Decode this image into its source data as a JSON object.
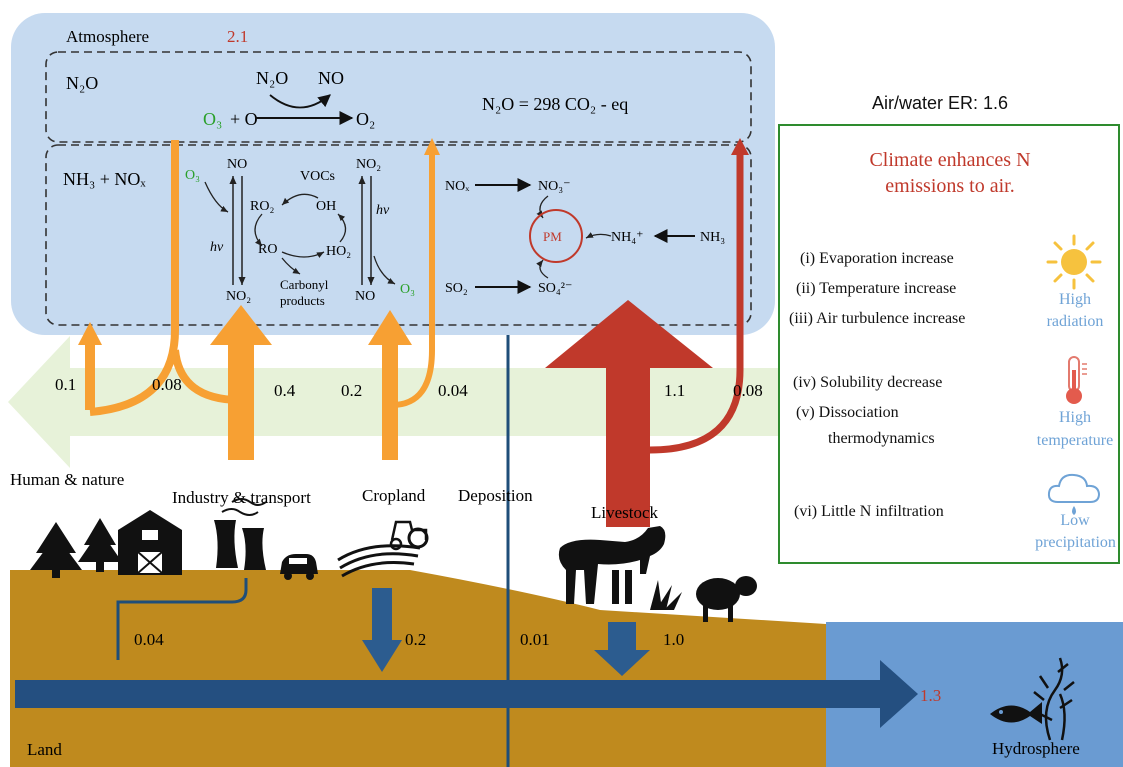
{
  "atmosphere": {
    "label": "Atmosphere",
    "value": "2.1",
    "n2o_label": "N₂O",
    "reaction_o3": "O₃",
    "reaction_plus_o": "+ O",
    "reaction_n2o": "N₂O",
    "reaction_no": "NO",
    "reaction_o2": "O₂",
    "gwp": "N₂O = 298 CO₂ - eq",
    "nh3_nox": "NH₃ + NOₓ",
    "cycle": {
      "o3_left": "O₃",
      "no_top": "NO",
      "ro2": "RO₂",
      "vocs": "VOCs",
      "oh": "OH",
      "no2_top": "NO₂",
      "hv_left": "hv",
      "hv_right": "hv",
      "ro": "RO",
      "ho2": "HO₂",
      "no2_bottom": "NO₂",
      "carbonyl_1": "Carbonyl",
      "carbonyl_2": "products",
      "no_bottom": "NO",
      "o3_right": "O₃"
    },
    "pm": {
      "nox": "NOₓ",
      "no3": "NO₃⁻",
      "pm": "PM",
      "nh4": "NH₄⁺",
      "nh3": "NH₃",
      "so2": "SO₂",
      "so4": "SO₄²⁻"
    }
  },
  "flows": {
    "v0_1": "0.1",
    "v0_08_left": "0.08",
    "v0_4": "0.4",
    "v0_2": "0.2",
    "v0_04_top": "0.04",
    "v1_1": "1.1",
    "v0_08_right": "0.08",
    "v0_04_land": "0.04",
    "v0_2_land": "0.2",
    "v0_01": "0.01",
    "v1_0": "1.0",
    "v1_3": "1.3"
  },
  "sources": {
    "human_nature": "Human & nature",
    "industry": "Industry & transport",
    "cropland": "Cropland",
    "deposition": "Deposition",
    "livestock": "Livestock"
  },
  "land": "Land",
  "hydrosphere": "Hydrosphere",
  "er_panel": {
    "ratio_label": "Air/water ER: 1.6",
    "title_line1": "Climate enhances N",
    "title_line2": "emissions to air.",
    "conditions": [
      "(i) Evaporation increase",
      "(ii) Temperature increase",
      "(iii) Air turbulence increase",
      "(iv) Solubility decrease",
      "(v) Dissociation",
      "thermodynamics",
      "(vi) Little N infiltration"
    ],
    "climate_labels": {
      "radiation_1": "High",
      "radiation_2": "radiation",
      "temperature_1": "High",
      "temperature_2": "temperature",
      "precip_1": "Low",
      "precip_2": "precipitation"
    }
  },
  "colors": {
    "atmosphere_fill": "#c6daf0",
    "orange": "#f7a033",
    "red": "#c0392b",
    "land": "#bf8a1e",
    "water": "#6a9bd2",
    "dark_blue": "#1f4e79",
    "green_border": "#2e8b2e",
    "green_arrow": "#e6f2d8",
    "red_text": "#c0392b",
    "light_blue_text": "#6fa3d6",
    "green_text": "#2aa02a"
  },
  "icons": [
    "tree-icon",
    "barn-icon",
    "factory-icon",
    "car-icon",
    "tractor-icon",
    "cow-icon",
    "sheep-icon",
    "grass-icon",
    "sun-icon",
    "thermometer-icon",
    "cloud-rain-icon",
    "fish-icon",
    "seaweed-icon"
  ]
}
